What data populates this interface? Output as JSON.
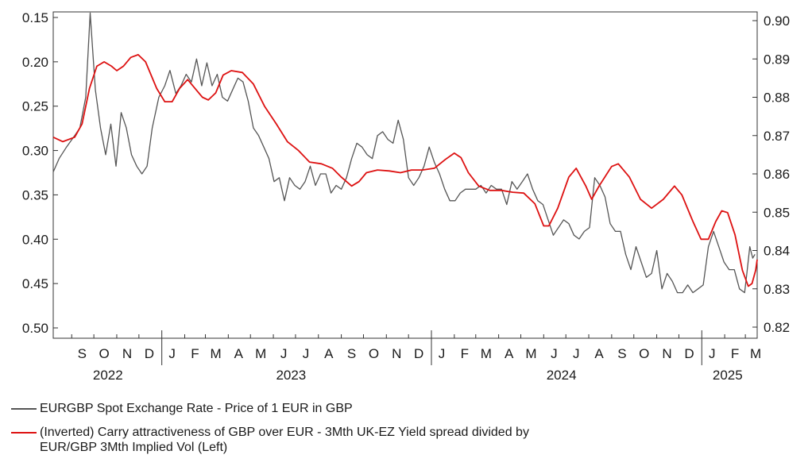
{
  "chart_data": {
    "type": "line",
    "title": "",
    "xlabel": "",
    "left_axis": {
      "ylim": [
        0.15,
        0.5
      ],
      "inverted": true,
      "ticks": [
        "0.15",
        "0.20",
        "0.25",
        "0.30",
        "0.35",
        "0.40",
        "0.45",
        "0.50"
      ]
    },
    "right_axis": {
      "ylim": [
        0.82,
        0.905
      ],
      "ticks": [
        "0.90",
        "0.89",
        "0.88",
        "0.87",
        "0.86",
        "0.85",
        "0.84",
        "0.83",
        "0.82"
      ]
    },
    "x_range": [
      "2022-08-07",
      "2025-03-17"
    ],
    "month_labels": [
      {
        "label": "S",
        "date": "2022-09-15"
      },
      {
        "label": "O",
        "date": "2022-10-15"
      },
      {
        "label": "N",
        "date": "2022-11-15"
      },
      {
        "label": "D",
        "date": "2022-12-15"
      },
      {
        "label": "J",
        "date": "2023-01-15"
      },
      {
        "label": "F",
        "date": "2023-02-15"
      },
      {
        "label": "M",
        "date": "2023-03-15"
      },
      {
        "label": "A",
        "date": "2023-04-15"
      },
      {
        "label": "M",
        "date": "2023-05-15"
      },
      {
        "label": "J",
        "date": "2023-06-15"
      },
      {
        "label": "J",
        "date": "2023-07-15"
      },
      {
        "label": "A",
        "date": "2023-08-15"
      },
      {
        "label": "S",
        "date": "2023-09-15"
      },
      {
        "label": "O",
        "date": "2023-10-15"
      },
      {
        "label": "N",
        "date": "2023-11-15"
      },
      {
        "label": "D",
        "date": "2023-12-15"
      },
      {
        "label": "J",
        "date": "2024-01-15"
      },
      {
        "label": "F",
        "date": "2024-02-15"
      },
      {
        "label": "M",
        "date": "2024-03-15"
      },
      {
        "label": "A",
        "date": "2024-04-15"
      },
      {
        "label": "M",
        "date": "2024-05-15"
      },
      {
        "label": "J",
        "date": "2024-06-15"
      },
      {
        "label": "J",
        "date": "2024-07-15"
      },
      {
        "label": "A",
        "date": "2024-08-15"
      },
      {
        "label": "S",
        "date": "2024-09-15"
      },
      {
        "label": "O",
        "date": "2024-10-15"
      },
      {
        "label": "N",
        "date": "2024-11-15"
      },
      {
        "label": "D",
        "date": "2024-12-15"
      },
      {
        "label": "J",
        "date": "2025-01-15"
      },
      {
        "label": "F",
        "date": "2025-02-15"
      },
      {
        "label": "M",
        "date": "2025-03-15"
      }
    ],
    "year_labels": [
      {
        "label": "2022",
        "date": "2022-10-20"
      },
      {
        "label": "2023",
        "date": "2023-06-25"
      },
      {
        "label": "2024",
        "date": "2024-06-25"
      },
      {
        "label": "2025",
        "date": "2025-02-05"
      }
    ],
    "series": [
      {
        "name": "EURGBP Spot Exchange Rate - Price of 1 EUR in GBP",
        "axis": "right",
        "color": "#555555",
        "points": [
          [
            "2022-08-07",
            0.8605
          ],
          [
            "2022-08-15",
            0.864
          ],
          [
            "2022-08-25",
            0.867
          ],
          [
            "2022-09-05",
            0.87
          ],
          [
            "2022-09-12",
            0.872
          ],
          [
            "2022-09-20",
            0.88
          ],
          [
            "2022-09-26",
            0.902
          ],
          [
            "2022-10-03",
            0.882
          ],
          [
            "2022-10-10",
            0.872
          ],
          [
            "2022-10-17",
            0.865
          ],
          [
            "2022-10-24",
            0.873
          ],
          [
            "2022-10-31",
            0.862
          ],
          [
            "2022-11-07",
            0.876
          ],
          [
            "2022-11-14",
            0.872
          ],
          [
            "2022-11-21",
            0.865
          ],
          [
            "2022-11-28",
            0.862
          ],
          [
            "2022-12-05",
            0.86
          ],
          [
            "2022-12-12",
            0.862
          ],
          [
            "2022-12-19",
            0.872
          ],
          [
            "2022-12-28",
            0.88
          ],
          [
            "2023-01-05",
            0.883
          ],
          [
            "2023-01-12",
            0.887
          ],
          [
            "2023-01-20",
            0.881
          ],
          [
            "2023-01-27",
            0.883
          ],
          [
            "2023-02-03",
            0.886
          ],
          [
            "2023-02-10",
            0.884
          ],
          [
            "2023-02-17",
            0.89
          ],
          [
            "2023-02-24",
            0.883
          ],
          [
            "2023-03-03",
            0.889
          ],
          [
            "2023-03-10",
            0.883
          ],
          [
            "2023-03-17",
            0.886
          ],
          [
            "2023-03-24",
            0.88
          ],
          [
            "2023-03-31",
            0.879
          ],
          [
            "2023-04-07",
            0.882
          ],
          [
            "2023-04-14",
            0.885
          ],
          [
            "2023-04-21",
            0.884
          ],
          [
            "2023-04-28",
            0.879
          ],
          [
            "2023-05-05",
            0.872
          ],
          [
            "2023-05-12",
            0.87
          ],
          [
            "2023-05-19",
            0.867
          ],
          [
            "2023-05-26",
            0.864
          ],
          [
            "2023-06-02",
            0.858
          ],
          [
            "2023-06-09",
            0.859
          ],
          [
            "2023-06-16",
            0.853
          ],
          [
            "2023-06-23",
            0.859
          ],
          [
            "2023-06-30",
            0.857
          ],
          [
            "2023-07-07",
            0.856
          ],
          [
            "2023-07-14",
            0.858
          ],
          [
            "2023-07-21",
            0.862
          ],
          [
            "2023-07-28",
            0.857
          ],
          [
            "2023-08-04",
            0.86
          ],
          [
            "2023-08-11",
            0.86
          ],
          [
            "2023-08-18",
            0.855
          ],
          [
            "2023-08-25",
            0.857
          ],
          [
            "2023-09-01",
            0.856
          ],
          [
            "2023-09-08",
            0.859
          ],
          [
            "2023-09-15",
            0.864
          ],
          [
            "2023-09-22",
            0.868
          ],
          [
            "2023-09-29",
            0.867
          ],
          [
            "2023-10-06",
            0.865
          ],
          [
            "2023-10-13",
            0.864
          ],
          [
            "2023-10-20",
            0.87
          ],
          [
            "2023-10-27",
            0.871
          ],
          [
            "2023-11-03",
            0.869
          ],
          [
            "2023-11-10",
            0.868
          ],
          [
            "2023-11-17",
            0.874
          ],
          [
            "2023-11-24",
            0.869
          ],
          [
            "2023-12-01",
            0.859
          ],
          [
            "2023-12-08",
            0.857
          ],
          [
            "2023-12-15",
            0.859
          ],
          [
            "2023-12-22",
            0.862
          ],
          [
            "2023-12-29",
            0.867
          ],
          [
            "2024-01-05",
            0.863
          ],
          [
            "2024-01-12",
            0.86
          ],
          [
            "2024-01-19",
            0.856
          ],
          [
            "2024-01-26",
            0.853
          ],
          [
            "2024-02-02",
            0.853
          ],
          [
            "2024-02-09",
            0.855
          ],
          [
            "2024-02-16",
            0.856
          ],
          [
            "2024-02-23",
            0.856
          ],
          [
            "2024-03-01",
            0.856
          ],
          [
            "2024-03-08",
            0.857
          ],
          [
            "2024-03-15",
            0.855
          ],
          [
            "2024-03-22",
            0.857
          ],
          [
            "2024-03-29",
            0.856
          ],
          [
            "2024-04-05",
            0.856
          ],
          [
            "2024-04-12",
            0.852
          ],
          [
            "2024-04-19",
            0.858
          ],
          [
            "2024-04-26",
            0.856
          ],
          [
            "2024-05-03",
            0.858
          ],
          [
            "2024-05-10",
            0.86
          ],
          [
            "2024-05-17",
            0.856
          ],
          [
            "2024-05-24",
            0.853
          ],
          [
            "2024-05-31",
            0.852
          ],
          [
            "2024-06-07",
            0.848
          ],
          [
            "2024-06-14",
            0.844
          ],
          [
            "2024-06-21",
            0.846
          ],
          [
            "2024-06-28",
            0.848
          ],
          [
            "2024-07-05",
            0.847
          ],
          [
            "2024-07-12",
            0.844
          ],
          [
            "2024-07-19",
            0.843
          ],
          [
            "2024-07-26",
            0.845
          ],
          [
            "2024-08-02",
            0.846
          ],
          [
            "2024-08-09",
            0.859
          ],
          [
            "2024-08-16",
            0.857
          ],
          [
            "2024-08-23",
            0.854
          ],
          [
            "2024-08-30",
            0.847
          ],
          [
            "2024-09-06",
            0.845
          ],
          [
            "2024-09-13",
            0.845
          ],
          [
            "2024-09-20",
            0.839
          ],
          [
            "2024-09-27",
            0.835
          ],
          [
            "2024-10-04",
            0.841
          ],
          [
            "2024-10-11",
            0.837
          ],
          [
            "2024-10-18",
            0.833
          ],
          [
            "2024-10-25",
            0.834
          ],
          [
            "2024-11-01",
            0.84
          ],
          [
            "2024-11-08",
            0.83
          ],
          [
            "2024-11-15",
            0.834
          ],
          [
            "2024-11-22",
            0.832
          ],
          [
            "2024-11-29",
            0.829
          ],
          [
            "2024-12-06",
            0.829
          ],
          [
            "2024-12-13",
            0.831
          ],
          [
            "2024-12-20",
            0.829
          ],
          [
            "2024-12-27",
            0.83
          ],
          [
            "2025-01-03",
            0.831
          ],
          [
            "2025-01-10",
            0.841
          ],
          [
            "2025-01-17",
            0.845
          ],
          [
            "2025-01-24",
            0.841
          ],
          [
            "2025-01-31",
            0.837
          ],
          [
            "2025-02-07",
            0.835
          ],
          [
            "2025-02-14",
            0.835
          ],
          [
            "2025-02-21",
            0.83
          ],
          [
            "2025-02-28",
            0.829
          ],
          [
            "2025-03-03",
            0.834
          ],
          [
            "2025-03-07",
            0.841
          ],
          [
            "2025-03-11",
            0.838
          ],
          [
            "2025-03-14",
            0.839
          ]
        ]
      },
      {
        "name": "(Inverted) Carry attractiveness of GBP over EUR - 3Mth UK-EZ Yield spread divided by EUR/GBP 3Mth Implied Vol",
        "axis": "left",
        "label_suffix": "(Left)",
        "color": "#dd1111",
        "points": [
          [
            "2022-08-07",
            0.285
          ],
          [
            "2022-08-20",
            0.29
          ],
          [
            "2022-09-05",
            0.285
          ],
          [
            "2022-09-15",
            0.27
          ],
          [
            "2022-09-25",
            0.23
          ],
          [
            "2022-10-05",
            0.205
          ],
          [
            "2022-10-15",
            0.2
          ],
          [
            "2022-10-25",
            0.205
          ],
          [
            "2022-11-01",
            0.21
          ],
          [
            "2022-11-10",
            0.205
          ],
          [
            "2022-11-20",
            0.195
          ],
          [
            "2022-11-30",
            0.192
          ],
          [
            "2022-12-10",
            0.2
          ],
          [
            "2022-12-25",
            0.23
          ],
          [
            "2023-01-05",
            0.245
          ],
          [
            "2023-01-15",
            0.245
          ],
          [
            "2023-01-25",
            0.23
          ],
          [
            "2023-02-05",
            0.22
          ],
          [
            "2023-02-15",
            0.23
          ],
          [
            "2023-02-25",
            0.24
          ],
          [
            "2023-03-05",
            0.243
          ],
          [
            "2023-03-15",
            0.235
          ],
          [
            "2023-03-25",
            0.215
          ],
          [
            "2023-04-05",
            0.21
          ],
          [
            "2023-04-20",
            0.212
          ],
          [
            "2023-05-05",
            0.225
          ],
          [
            "2023-05-20",
            0.25
          ],
          [
            "2023-06-05",
            0.27
          ],
          [
            "2023-06-20",
            0.29
          ],
          [
            "2023-07-05",
            0.3
          ],
          [
            "2023-07-20",
            0.313
          ],
          [
            "2023-08-05",
            0.315
          ],
          [
            "2023-08-20",
            0.32
          ],
          [
            "2023-09-01",
            0.33
          ],
          [
            "2023-09-15",
            0.34
          ],
          [
            "2023-09-25",
            0.335
          ],
          [
            "2023-10-05",
            0.325
          ],
          [
            "2023-10-20",
            0.322
          ],
          [
            "2023-11-05",
            0.323
          ],
          [
            "2023-11-20",
            0.325
          ],
          [
            "2023-12-05",
            0.322
          ],
          [
            "2023-12-20",
            0.322
          ],
          [
            "2024-01-05",
            0.32
          ],
          [
            "2024-01-20",
            0.31
          ],
          [
            "2024-02-01",
            0.303
          ],
          [
            "2024-02-10",
            0.308
          ],
          [
            "2024-02-20",
            0.325
          ],
          [
            "2024-03-05",
            0.34
          ],
          [
            "2024-03-20",
            0.345
          ],
          [
            "2024-04-05",
            0.345
          ],
          [
            "2024-04-20",
            0.347
          ],
          [
            "2024-05-05",
            0.348
          ],
          [
            "2024-05-20",
            0.36
          ],
          [
            "2024-06-01",
            0.385
          ],
          [
            "2024-06-08",
            0.385
          ],
          [
            "2024-06-20",
            0.365
          ],
          [
            "2024-07-05",
            0.33
          ],
          [
            "2024-07-15",
            0.32
          ],
          [
            "2024-07-28",
            0.34
          ],
          [
            "2024-08-05",
            0.355
          ],
          [
            "2024-08-15",
            0.34
          ],
          [
            "2024-09-01",
            0.318
          ],
          [
            "2024-09-10",
            0.315
          ],
          [
            "2024-09-25",
            0.33
          ],
          [
            "2024-10-10",
            0.355
          ],
          [
            "2024-10-25",
            0.365
          ],
          [
            "2024-11-10",
            0.355
          ],
          [
            "2024-11-25",
            0.34
          ],
          [
            "2024-12-05",
            0.35
          ],
          [
            "2024-12-20",
            0.38
          ],
          [
            "2024-12-31",
            0.4
          ],
          [
            "2025-01-10",
            0.4
          ],
          [
            "2025-01-20",
            0.38
          ],
          [
            "2025-01-28",
            0.368
          ],
          [
            "2025-02-05",
            0.37
          ],
          [
            "2025-02-15",
            0.395
          ],
          [
            "2025-02-25",
            0.435
          ],
          [
            "2025-03-05",
            0.453
          ],
          [
            "2025-03-10",
            0.45
          ],
          [
            "2025-03-15",
            0.435
          ],
          [
            "2025-03-17",
            0.423
          ]
        ]
      }
    ],
    "legend": {
      "placement": "bottom",
      "items": [
        {
          "label": "EURGBP Spot Exchange Rate - Price of 1 EUR in GBP",
          "color": "#555555"
        },
        {
          "label": "(Inverted) Carry attractiveness of GBP over EUR - 3Mth UK-EZ Yield spread divided by EUR/GBP 3Mth Implied Vol   (Left)",
          "color": "#dd1111"
        }
      ]
    }
  }
}
